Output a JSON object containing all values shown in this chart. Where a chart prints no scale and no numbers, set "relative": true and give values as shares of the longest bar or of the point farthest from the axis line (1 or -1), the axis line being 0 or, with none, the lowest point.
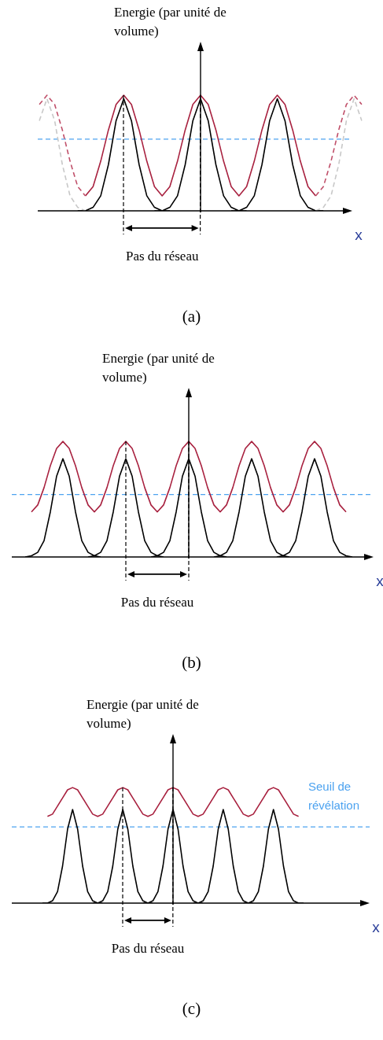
{
  "chart_data": [
    {
      "type": "line",
      "title": "(a)",
      "xlabel": "x",
      "ylabel": "Energie (par unité de volume)",
      "relative": true,
      "categories": [
        null,
        null,
        null,
        null,
        null,
        null,
        null,
        null,
        null,
        null,
        null,
        null,
        null,
        null,
        null,
        null,
        null,
        null,
        null,
        null,
        null,
        null,
        null,
        null,
        null,
        null,
        null,
        null,
        null,
        null,
        null,
        null,
        null,
        null,
        null,
        null,
        null,
        null,
        null,
        null,
        null,
        null,
        null
      ],
      "annotations": [
        "Pas du réseau"
      ],
      "ref_lines": [
        {
          "axis": "y",
          "value": 0.62,
          "color": "#4da3f0",
          "line_style": "dashed"
        }
      ],
      "series": [
        {
          "color": "#c8c8c8",
          "line_style": "dashed",
          "values": [
            0.78,
            0.97,
            0.78,
            0.4,
            0.13,
            0.03,
            0,
            null,
            null,
            null,
            null,
            null,
            null,
            null,
            null,
            null,
            null,
            null,
            null,
            null,
            null,
            null,
            null,
            null,
            null,
            null,
            null,
            null,
            null,
            null,
            null,
            null,
            null,
            null,
            null,
            null,
            null,
            null,
            null,
            null,
            null,
            null,
            null
          ]
        },
        {
          "color": "#c8c8c8",
          "line_style": "dashed",
          "values": [
            null,
            null,
            null,
            null,
            null,
            null,
            null,
            null,
            null,
            null,
            null,
            null,
            null,
            null,
            null,
            null,
            null,
            null,
            null,
            null,
            null,
            null,
            null,
            null,
            null,
            null,
            null,
            null,
            null,
            null,
            null,
            null,
            null,
            null,
            null,
            null,
            0,
            0.03,
            0.13,
            0.4,
            0.78,
            0.97,
            0.78
          ]
        },
        {
          "color": "#c0506a",
          "line_style": "dashed",
          "values": [
            0.92,
            1,
            0.92,
            0.7,
            0.43,
            0.21,
            0.13,
            null,
            null,
            null,
            null,
            null,
            null,
            null,
            null,
            null,
            null,
            null,
            null,
            null,
            null,
            null,
            null,
            null,
            null,
            null,
            null,
            null,
            null,
            null,
            null,
            null,
            null,
            null,
            null,
            null,
            null,
            null,
            null,
            null,
            null,
            null,
            null
          ]
        },
        {
          "color": "#c0506a",
          "line_style": "dashed",
          "values": [
            null,
            null,
            null,
            null,
            null,
            null,
            null,
            null,
            null,
            null,
            null,
            null,
            null,
            null,
            null,
            null,
            null,
            null,
            null,
            null,
            null,
            null,
            null,
            null,
            null,
            null,
            null,
            null,
            null,
            null,
            null,
            null,
            null,
            null,
            null,
            null,
            0.13,
            0.21,
            0.43,
            0.7,
            0.92,
            1,
            0.92
          ]
        },
        {
          "color": "#000000",
          "values": [
            null,
            null,
            null,
            null,
            null,
            0,
            0,
            0.03,
            0.13,
            0.4,
            0.78,
            0.97,
            0.78,
            0.4,
            0.13,
            0.03,
            0,
            0,
            null,
            null,
            null,
            null,
            null,
            null,
            null,
            null,
            null,
            null,
            null,
            null,
            null,
            null,
            null,
            null,
            null,
            null,
            null,
            null,
            null,
            null,
            null,
            null,
            null
          ]
        },
        {
          "color": "#000000",
          "values": [
            null,
            null,
            null,
            null,
            null,
            null,
            null,
            null,
            null,
            null,
            null,
            null,
            null,
            null,
            null,
            0,
            0,
            0.03,
            0.13,
            0.4,
            0.78,
            0.97,
            0.78,
            0.4,
            0.13,
            0.03,
            0,
            0,
            null,
            null,
            null,
            null,
            null,
            null,
            null,
            null,
            null,
            null,
            null,
            null,
            null,
            null,
            null
          ]
        },
        {
          "color": "#000000",
          "values": [
            null,
            null,
            null,
            null,
            null,
            null,
            null,
            null,
            null,
            null,
            null,
            null,
            null,
            null,
            null,
            null,
            null,
            null,
            null,
            null,
            null,
            null,
            null,
            null,
            null,
            0,
            0,
            0.03,
            0.13,
            0.4,
            0.78,
            0.97,
            0.78,
            0.4,
            0.13,
            0.03,
            0,
            0,
            null,
            null,
            null,
            null,
            null
          ]
        },
        {
          "color": "#a8213f",
          "values": [
            null,
            null,
            null,
            null,
            null,
            null,
            0.13,
            0.21,
            0.43,
            0.7,
            0.92,
            1,
            0.92,
            0.7,
            0.43,
            0.21,
            0.13,
            0.21,
            0.43,
            0.7,
            0.92,
            1,
            0.92,
            0.7,
            0.43,
            0.21,
            0.13,
            0.21,
            0.43,
            0.7,
            0.92,
            1,
            0.92,
            0.7,
            0.43,
            0.21,
            0.13,
            null,
            null,
            null,
            null,
            null,
            null
          ]
        }
      ]
    },
    {
      "type": "line",
      "title": "(b)",
      "xlabel": "x",
      "ylabel": "Energie (par unité de volume)",
      "relative": true,
      "categories": [
        null,
        null,
        null,
        null,
        null,
        null,
        null,
        null,
        null,
        null,
        null,
        null,
        null,
        null,
        null,
        null,
        null,
        null,
        null,
        null,
        null,
        null,
        null,
        null,
        null,
        null,
        null,
        null,
        null,
        null,
        null,
        null,
        null,
        null,
        null,
        null,
        null,
        null,
        null,
        null,
        null,
        null,
        null,
        null,
        null,
        null,
        null,
        null,
        null,
        null,
        null,
        null,
        null
      ],
      "annotations": [
        "Pas du réseau"
      ],
      "ref_lines": [
        {
          "axis": "y",
          "value": 0.54,
          "color": "#4da3f0",
          "line_style": "dashed"
        }
      ],
      "series": [
        {
          "color": "#000000",
          "values": [
            0,
            0.01,
            0.04,
            0.14,
            0.39,
            0.7,
            0.85,
            0.7,
            0.39,
            0.14,
            0.04,
            0.01,
            0,
            null,
            null,
            null,
            null,
            null,
            null,
            null,
            null,
            null,
            null,
            null,
            null,
            null,
            null,
            null,
            null,
            null,
            null,
            null,
            null,
            null,
            null,
            null,
            null,
            null,
            null,
            null,
            null,
            null,
            null,
            null,
            null,
            null,
            null,
            null,
            null,
            null,
            null,
            null,
            null
          ]
        },
        {
          "color": "#000000",
          "values": [
            null,
            null,
            null,
            null,
            null,
            null,
            null,
            null,
            null,
            null,
            0,
            0.01,
            0.04,
            0.14,
            0.39,
            0.7,
            0.85,
            0.7,
            0.39,
            0.14,
            0.04,
            0.01,
            0,
            null,
            null,
            null,
            null,
            null,
            null,
            null,
            null,
            null,
            null,
            null,
            null,
            null,
            null,
            null,
            null,
            null,
            null,
            null,
            null,
            null,
            null,
            null,
            null,
            null,
            null,
            null,
            null,
            null,
            null
          ]
        },
        {
          "color": "#000000",
          "values": [
            null,
            null,
            null,
            null,
            null,
            null,
            null,
            null,
            null,
            null,
            null,
            null,
            null,
            null,
            null,
            null,
            null,
            null,
            null,
            null,
            0,
            0.01,
            0.04,
            0.14,
            0.39,
            0.7,
            0.85,
            0.7,
            0.39,
            0.14,
            0.04,
            0.01,
            0,
            null,
            null,
            null,
            null,
            null,
            null,
            null,
            null,
            null,
            null,
            null,
            null,
            null,
            null,
            null,
            null,
            null,
            null,
            null,
            null
          ]
        },
        {
          "color": "#000000",
          "values": [
            null,
            null,
            null,
            null,
            null,
            null,
            null,
            null,
            null,
            null,
            null,
            null,
            null,
            null,
            null,
            null,
            null,
            null,
            null,
            null,
            null,
            null,
            null,
            null,
            null,
            null,
            null,
            null,
            null,
            null,
            0,
            0.01,
            0.04,
            0.14,
            0.39,
            0.7,
            0.85,
            0.7,
            0.39,
            0.14,
            0.04,
            0.01,
            0,
            null,
            null,
            null,
            null,
            null,
            null,
            null,
            null,
            null,
            null
          ]
        },
        {
          "color": "#000000",
          "values": [
            null,
            null,
            null,
            null,
            null,
            null,
            null,
            null,
            null,
            null,
            null,
            null,
            null,
            null,
            null,
            null,
            null,
            null,
            null,
            null,
            null,
            null,
            null,
            null,
            null,
            null,
            null,
            null,
            null,
            null,
            null,
            null,
            null,
            null,
            null,
            null,
            null,
            null,
            null,
            null,
            0,
            0.01,
            0.04,
            0.14,
            0.39,
            0.7,
            0.85,
            0.7,
            0.39,
            0.14,
            0.04,
            0.01,
            0
          ]
        },
        {
          "color": "#a8213f",
          "values": [
            null,
            0.39,
            0.45,
            0.6,
            0.79,
            0.94,
            1,
            0.94,
            0.79,
            0.6,
            0.45,
            0.39,
            0.45,
            0.6,
            0.79,
            0.94,
            1,
            0.94,
            0.79,
            0.6,
            0.45,
            0.39,
            0.45,
            0.6,
            0.79,
            0.94,
            1,
            0.94,
            0.79,
            0.6,
            0.45,
            0.39,
            0.45,
            0.6,
            0.79,
            0.94,
            1,
            0.94,
            0.79,
            0.6,
            0.45,
            0.39,
            0.45,
            0.6,
            0.79,
            0.94,
            1,
            0.94,
            0.79,
            0.6,
            0.45,
            0.39,
            null
          ]
        }
      ]
    },
    {
      "type": "line",
      "title": "(c)",
      "xlabel": "x",
      "ylabel": "Energie (par unité de volume)",
      "relative": true,
      "categories": [
        null,
        null,
        null,
        null,
        null,
        null,
        null,
        null,
        null,
        null,
        null,
        null,
        null,
        null,
        null,
        null,
        null,
        null,
        null,
        null,
        null,
        null,
        null,
        null,
        null,
        null,
        null,
        null,
        null,
        null,
        null,
        null,
        null,
        null,
        null,
        null,
        null,
        null,
        null,
        null,
        null,
        null,
        null,
        null,
        null,
        null,
        null,
        null,
        null,
        null,
        null,
        null,
        null
      ],
      "annotations": [
        "Pas du réseau"
      ],
      "ref_lines": [
        {
          "axis": "y",
          "value": 0.66,
          "color": "#4da3f0",
          "line_style": "dashed",
          "label": "Seuil de révélation"
        }
      ],
      "series": [
        {
          "color": "#000000",
          "values": [
            0,
            0,
            0.02,
            0.1,
            0.32,
            0.64,
            0.81,
            0.64,
            0.32,
            0.1,
            0.02,
            0,
            0,
            null,
            null,
            null,
            null,
            null,
            null,
            null,
            null,
            null,
            null,
            null,
            null,
            null,
            null,
            null,
            null,
            null,
            null,
            null,
            null,
            null,
            null,
            null,
            null,
            null,
            null,
            null,
            null,
            null,
            null,
            null,
            null,
            null,
            null,
            null,
            null,
            null,
            null,
            null,
            null
          ]
        },
        {
          "color": "#000000",
          "values": [
            null,
            null,
            null,
            null,
            null,
            null,
            null,
            null,
            null,
            null,
            0,
            0,
            0.02,
            0.1,
            0.32,
            0.64,
            0.81,
            0.64,
            0.32,
            0.1,
            0.02,
            0,
            0,
            null,
            null,
            null,
            null,
            null,
            null,
            null,
            null,
            null,
            null,
            null,
            null,
            null,
            null,
            null,
            null,
            null,
            null,
            null,
            null,
            null,
            null,
            null,
            null,
            null,
            null,
            null,
            null,
            null,
            null
          ]
        },
        {
          "color": "#000000",
          "values": [
            null,
            null,
            null,
            null,
            null,
            null,
            null,
            null,
            null,
            null,
            null,
            null,
            null,
            null,
            null,
            null,
            null,
            null,
            null,
            null,
            0,
            0,
            0.02,
            0.1,
            0.32,
            0.64,
            0.81,
            0.64,
            0.32,
            0.1,
            0.02,
            0,
            0,
            null,
            null,
            null,
            null,
            null,
            null,
            null,
            null,
            null,
            null,
            null,
            null,
            null,
            null,
            null,
            null,
            null,
            null,
            null,
            null
          ]
        },
        {
          "color": "#000000",
          "values": [
            null,
            null,
            null,
            null,
            null,
            null,
            null,
            null,
            null,
            null,
            null,
            null,
            null,
            null,
            null,
            null,
            null,
            null,
            null,
            null,
            null,
            null,
            null,
            null,
            null,
            null,
            null,
            null,
            null,
            null,
            0,
            0,
            0.02,
            0.1,
            0.32,
            0.64,
            0.81,
            0.64,
            0.32,
            0.1,
            0.02,
            0,
            0,
            null,
            null,
            null,
            null,
            null,
            null,
            null,
            null,
            null,
            null
          ]
        },
        {
          "color": "#000000",
          "values": [
            null,
            null,
            null,
            null,
            null,
            null,
            null,
            null,
            null,
            null,
            null,
            null,
            null,
            null,
            null,
            null,
            null,
            null,
            null,
            null,
            null,
            null,
            null,
            null,
            null,
            null,
            null,
            null,
            null,
            null,
            null,
            null,
            null,
            null,
            null,
            null,
            null,
            null,
            null,
            null,
            0,
            0,
            0.02,
            0.1,
            0.32,
            0.64,
            0.81,
            0.64,
            0.32,
            0.1,
            0.02,
            0,
            0
          ]
        },
        {
          "color": "#a8213f",
          "values": [
            null,
            0.75,
            0.77,
            0.84,
            0.91,
            0.98,
            1,
            0.98,
            0.91,
            0.84,
            0.77,
            0.75,
            0.77,
            0.84,
            0.91,
            0.98,
            1,
            0.98,
            0.91,
            0.84,
            0.77,
            0.75,
            0.77,
            0.84,
            0.91,
            0.98,
            1,
            0.98,
            0.91,
            0.84,
            0.77,
            0.75,
            0.77,
            0.84,
            0.91,
            0.98,
            1,
            0.98,
            0.91,
            0.84,
            0.77,
            0.75,
            0.77,
            0.84,
            0.91,
            0.98,
            1,
            0.98,
            0.91,
            0.84,
            0.77,
            0.75,
            null
          ]
        }
      ]
    }
  ]
}
